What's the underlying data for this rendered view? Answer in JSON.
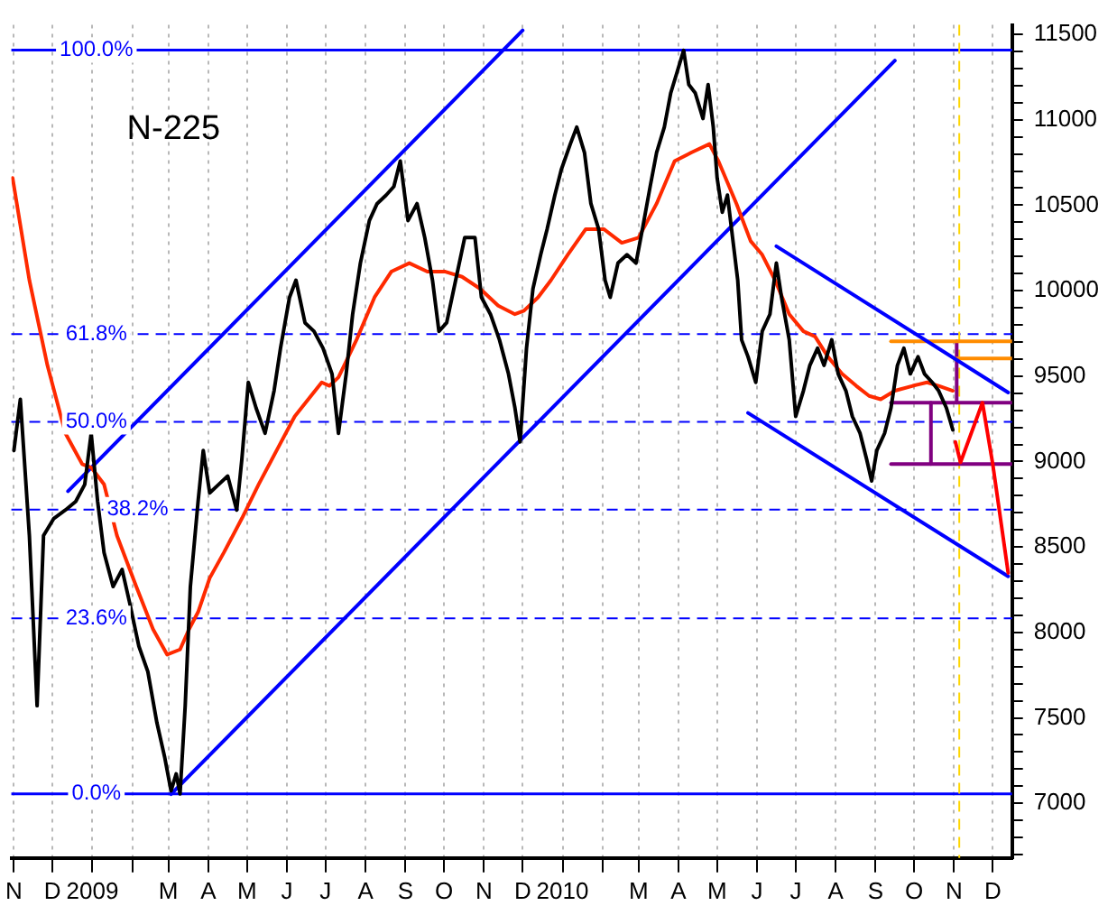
{
  "chart_data": {
    "type": "line",
    "title": "N-225",
    "legend": false,
    "grid": "x",
    "marker": "none",
    "line_style": "solid",
    "xlim": [
      "2008-10-30",
      "2010-12-16"
    ],
    "xticks": [
      {
        "value": "2008-11-01",
        "label": "N"
      },
      {
        "value": "2008-12-01",
        "label": "D"
      },
      {
        "value": "2009-01-01",
        "label": "2009"
      },
      {
        "value": "2009-02-01",
        "label": null
      },
      {
        "value": "2009-03-01",
        "label": "M"
      },
      {
        "value": "2009-04-01",
        "label": "A"
      },
      {
        "value": "2009-05-01",
        "label": "M"
      },
      {
        "value": "2009-06-01",
        "label": "J"
      },
      {
        "value": "2009-07-01",
        "label": "J"
      },
      {
        "value": "2009-08-01",
        "label": "A"
      },
      {
        "value": "2009-09-01",
        "label": "S"
      },
      {
        "value": "2009-10-01",
        "label": "O"
      },
      {
        "value": "2009-11-01",
        "label": "N"
      },
      {
        "value": "2009-12-01",
        "label": "D"
      },
      {
        "value": "2010-01-01",
        "label": "2010"
      },
      {
        "value": "2010-02-01",
        "label": null
      },
      {
        "value": "2010-03-01",
        "label": "M"
      },
      {
        "value": "2010-04-01",
        "label": "A"
      },
      {
        "value": "2010-05-01",
        "label": "M"
      },
      {
        "value": "2010-06-01",
        "label": "J"
      },
      {
        "value": "2010-07-01",
        "label": "J"
      },
      {
        "value": "2010-08-01",
        "label": "A"
      },
      {
        "value": "2010-09-01",
        "label": "S"
      },
      {
        "value": "2010-10-01",
        "label": "O"
      },
      {
        "value": "2010-11-01",
        "label": "N"
      },
      {
        "value": "2010-12-01",
        "label": "D"
      }
    ],
    "ylim": [
      6680,
      11555
    ],
    "yticks": [
      {
        "value": 6700,
        "label": null
      },
      {
        "value": 6800,
        "label": null
      },
      {
        "value": 6900,
        "label": null
      },
      7000,
      {
        "value": 7100,
        "label": null
      },
      {
        "value": 7200,
        "label": null
      },
      {
        "value": 7300,
        "label": null
      },
      {
        "value": 7400,
        "label": null
      },
      7500,
      {
        "value": 7600,
        "label": null
      },
      {
        "value": 7700,
        "label": null
      },
      {
        "value": 7800,
        "label": null
      },
      {
        "value": 7900,
        "label": null
      },
      8000,
      {
        "value": 8100,
        "label": null
      },
      {
        "value": 8200,
        "label": null
      },
      {
        "value": 8300,
        "label": null
      },
      {
        "value": 8400,
        "label": null
      },
      8500,
      {
        "value": 8600,
        "label": null
      },
      {
        "value": 8700,
        "label": null
      },
      {
        "value": 8800,
        "label": null
      },
      {
        "value": 8900,
        "label": null
      },
      9000,
      {
        "value": 9100,
        "label": null
      },
      {
        "value": 9200,
        "label": null
      },
      {
        "value": 9300,
        "label": null
      },
      {
        "value": 9400,
        "label": null
      },
      9500,
      {
        "value": 9600,
        "label": null
      },
      {
        "value": 9700,
        "label": null
      },
      {
        "value": 9800,
        "label": null
      },
      {
        "value": 9900,
        "label": null
      },
      10000,
      {
        "value": 10100,
        "label": null
      },
      {
        "value": 10200,
        "label": null
      },
      {
        "value": 10300,
        "label": null
      },
      {
        "value": 10400,
        "label": null
      },
      10500,
      {
        "value": 10600,
        "label": null
      },
      {
        "value": 10700,
        "label": null
      },
      {
        "value": 10800,
        "label": null
      },
      {
        "value": 10900,
        "label": null
      },
      11000,
      {
        "value": 11100,
        "label": null
      },
      {
        "value": 11200,
        "label": null
      },
      {
        "value": 11300,
        "label": null
      },
      {
        "value": 11400,
        "label": null
      },
      11500
    ],
    "ref_lines": [
      {
        "axis": "y",
        "value": 7055,
        "color": "#0000ff",
        "line_style": "solid"
      },
      {
        "axis": "y",
        "value": 8082,
        "color": "#0000ff",
        "line_style": "dashed"
      },
      {
        "axis": "y",
        "value": 8718,
        "color": "#0000ff",
        "line_style": "dashed"
      },
      {
        "axis": "y",
        "value": 9232,
        "color": "#0000ff",
        "line_style": "dashed"
      },
      {
        "axis": "y",
        "value": 9745,
        "color": "#0000ff",
        "line_style": "dashed"
      },
      {
        "axis": "y",
        "value": 11408,
        "color": "#0000ff",
        "line_style": "solid"
      },
      {
        "axis": "x",
        "value": "2010-11-05",
        "label": null,
        "color": "#ffd700",
        "line_style": "dashed"
      }
    ],
    "annotations": [
      {
        "text": "0.0%",
        "x": "2009-01-04",
        "y": 7055
      },
      {
        "text": "23.6%",
        "x": "2009-01-04",
        "y": 8082
      },
      {
        "text": "38.2%",
        "x": "2009-02-05",
        "y": 8718
      },
      {
        "text": "50.0%",
        "x": "2009-01-04",
        "y": 9232
      },
      {
        "text": "61.8%",
        "x": "2009-01-04",
        "y": 9745
      },
      {
        "text": "100.0%",
        "x": "2009-01-04",
        "y": 11408
      }
    ],
    "series": [
      {
        "color": "#000000",
        "x": [
          "2008-11-01",
          "2008-11-06",
          "2008-11-13",
          "2008-11-19",
          "2008-11-24",
          "2008-12-02",
          "2008-12-11",
          "2008-12-19",
          "2008-12-26",
          "2008-12-31",
          "2009-01-05",
          "2009-01-10",
          "2009-01-17",
          "2009-01-24",
          "2009-01-30",
          "2009-02-06",
          "2009-02-13",
          "2009-02-20",
          "2009-02-26",
          "2009-03-03",
          "2009-03-07",
          "2009-03-10",
          "2009-03-14",
          "2009-03-18",
          "2009-03-24",
          "2009-03-28",
          "2009-04-02",
          "2009-04-09",
          "2009-04-16",
          "2009-04-23",
          "2009-04-27",
          "2009-05-02",
          "2009-05-08",
          "2009-05-15",
          "2009-05-22",
          "2009-05-27",
          "2009-06-03",
          "2009-06-08",
          "2009-06-15",
          "2009-06-22",
          "2009-06-29",
          "2009-07-06",
          "2009-07-11",
          "2009-07-17",
          "2009-07-22",
          "2009-07-28",
          "2009-08-04",
          "2009-08-10",
          "2009-08-17",
          "2009-08-23",
          "2009-08-28",
          "2009-09-03",
          "2009-09-10",
          "2009-09-16",
          "2009-09-22",
          "2009-09-27",
          "2009-10-03",
          "2009-10-10",
          "2009-10-17",
          "2009-10-25",
          "2009-10-30",
          "2009-11-06",
          "2009-11-13",
          "2009-11-20",
          "2009-11-25",
          "2009-11-29",
          "2009-12-04",
          "2009-12-09",
          "2009-12-15",
          "2009-12-20",
          "2009-12-26",
          "2009-12-31",
          "2010-01-07",
          "2010-01-12",
          "2010-01-18",
          "2010-01-23",
          "2010-01-29",
          "2010-02-03",
          "2010-02-07",
          "2010-02-13",
          "2010-02-20",
          "2010-02-27",
          "2010-03-04",
          "2010-03-10",
          "2010-03-15",
          "2010-03-21",
          "2010-03-26",
          "2010-04-01",
          "2010-04-05",
          "2010-04-09",
          "2010-04-14",
          "2010-04-20",
          "2010-04-24",
          "2010-04-28",
          "2010-05-01",
          "2010-05-05",
          "2010-05-09",
          "2010-05-13",
          "2010-05-17",
          "2010-05-20",
          "2010-05-25",
          "2010-05-31",
          "2010-06-05",
          "2010-06-11",
          "2010-06-16",
          "2010-06-20",
          "2010-06-26",
          "2010-07-01",
          "2010-07-07",
          "2010-07-12",
          "2010-07-18",
          "2010-07-23",
          "2010-07-29",
          "2010-08-03",
          "2010-08-09",
          "2010-08-14",
          "2010-08-20",
          "2010-08-25",
          "2010-08-29",
          "2010-09-02",
          "2010-09-08",
          "2010-09-13",
          "2010-09-18",
          "2010-09-23",
          "2010-09-28",
          "2010-10-04",
          "2010-10-09",
          "2010-10-15",
          "2010-10-20",
          "2010-10-26",
          "2010-10-31"
        ],
        "values": [
          9065,
          9364,
          8567,
          7571,
          8567,
          8667,
          8716,
          8766,
          8866,
          9165,
          8766,
          8467,
          8268,
          8368,
          8169,
          7920,
          7770,
          7472,
          7272,
          7073,
          7172,
          7055,
          7571,
          8268,
          8766,
          9065,
          8816,
          8866,
          8915,
          8716,
          9015,
          9463,
          9314,
          9165,
          9414,
          9663,
          9961,
          10061,
          9812,
          9762,
          9663,
          9513,
          9165,
          9513,
          9862,
          10161,
          10410,
          10509,
          10559,
          10609,
          10758,
          10410,
          10509,
          10310,
          10061,
          9762,
          9812,
          10061,
          10310,
          10310,
          9961,
          9862,
          9712,
          9513,
          9314,
          9115,
          9663,
          10011,
          10210,
          10360,
          10559,
          10708,
          10858,
          10957,
          10808,
          10509,
          10360,
          10061,
          9961,
          10161,
          10210,
          10161,
          10360,
          10609,
          10808,
          10957,
          11157,
          11306,
          11406,
          11206,
          11157,
          11007,
          11206,
          10957,
          10659,
          10459,
          10559,
          10310,
          10061,
          9712,
          9613,
          9463,
          9762,
          9862,
          10161,
          9961,
          9712,
          9264,
          9414,
          9563,
          9663,
          9563,
          9712,
          9513,
          9414,
          9264,
          9165,
          9015,
          8886,
          9065,
          9165,
          9314,
          9563,
          9663,
          9513,
          9613,
          9513,
          9463,
          9414,
          9314,
          9185
        ]
      },
      {
        "color": "#ff2a00",
        "x": [
          "2008-10-31",
          "2008-11-13",
          "2008-11-27",
          "2008-12-11",
          "2008-12-24",
          "2008-12-31",
          "2009-01-10",
          "2009-01-20",
          "2009-02-04",
          "2009-02-17",
          "2009-02-28",
          "2009-03-10",
          "2009-03-17",
          "2009-03-24",
          "2009-04-02",
          "2009-04-13",
          "2009-04-27",
          "2009-05-10",
          "2009-05-24",
          "2009-06-07",
          "2009-06-28",
          "2009-07-04",
          "2009-07-11",
          "2009-07-25",
          "2009-08-08",
          "2009-08-21",
          "2009-09-04",
          "2009-09-18",
          "2009-10-02",
          "2009-10-15",
          "2009-10-29",
          "2009-11-12",
          "2009-11-25",
          "2009-12-02",
          "2009-12-13",
          "2009-12-23",
          "2010-01-05",
          "2010-01-19",
          "2010-02-02",
          "2010-02-16",
          "2010-03-01",
          "2010-03-15",
          "2010-03-29",
          "2010-04-11",
          "2010-04-25",
          "2010-05-02",
          "2010-05-16",
          "2010-05-27",
          "2010-06-05",
          "2010-06-15",
          "2010-06-26",
          "2010-07-07",
          "2010-07-16",
          "2010-07-26",
          "2010-08-06",
          "2010-08-17",
          "2010-08-27",
          "2010-09-05",
          "2010-09-16",
          "2010-09-30",
          "2010-10-11",
          "2010-10-20",
          "2010-10-31"
        ],
        "values": [
          10659,
          10061,
          9563,
          9165,
          8985,
          8965,
          8866,
          8567,
          8268,
          8019,
          7870,
          7900,
          8019,
          8119,
          8318,
          8467,
          8667,
          8866,
          9065,
          9264,
          9463,
          9443,
          9493,
          9712,
          9961,
          10111,
          10161,
          10111,
          10111,
          10081,
          10011,
          9912,
          9862,
          9882,
          9961,
          10061,
          10210,
          10360,
          10360,
          10280,
          10310,
          10509,
          10758,
          10808,
          10858,
          10758,
          10509,
          10290,
          10210,
          10061,
          9862,
          9762,
          9732,
          9613,
          9513,
          9443,
          9384,
          9364,
          9414,
          9443,
          9463,
          9443,
          9414
        ]
      },
      {
        "color": "#ff0000",
        "x": [
          "2010-11-02",
          "2010-11-06",
          "2010-11-23",
          "2010-12-01",
          "2010-12-13"
        ],
        "values": [
          9115,
          8995,
          9344,
          8985,
          8348
        ]
      },
      {
        "color": "#0000ff",
        "x": [
          "2008-12-13",
          "2009-12-01"
        ],
        "values": [
          8826,
          11523
        ]
      },
      {
        "color": "#0000ff",
        "x": [
          "2009-03-03",
          "2010-09-16"
        ],
        "values": [
          7053,
          11346
        ]
      },
      {
        "color": "#0000ff",
        "x": [
          "2010-06-16",
          "2010-12-13"
        ],
        "values": [
          10260,
          9404
        ]
      },
      {
        "color": "#0000ff",
        "x": [
          "2010-05-25",
          "2010-12-13"
        ],
        "values": [
          9284,
          8328
        ]
      },
      {
        "color": "#ff8c00",
        "x": [
          "2010-09-13",
          "2010-12-16"
        ],
        "values": [
          9703,
          9703
        ]
      },
      {
        "color": "#ff8c00",
        "x": [
          "2010-11-02",
          "2010-12-16"
        ],
        "values": [
          9603,
          9603
        ]
      },
      {
        "color": "#800080",
        "x": [
          "2010-09-13",
          "2010-12-16"
        ],
        "values": [
          9344,
          9344
        ]
      },
      {
        "color": "#800080",
        "x": [
          "2010-09-13",
          "2010-12-16"
        ],
        "values": [
          8985,
          8985
        ]
      },
      {
        "color": "#800080",
        "x": [
          "2010-10-14",
          "2010-10-14"
        ],
        "values": [
          9344,
          8985
        ]
      },
      {
        "color": "#800080",
        "x": [
          "2010-11-03",
          "2010-11-03"
        ],
        "values": [
          9703,
          9344
        ]
      }
    ]
  }
}
